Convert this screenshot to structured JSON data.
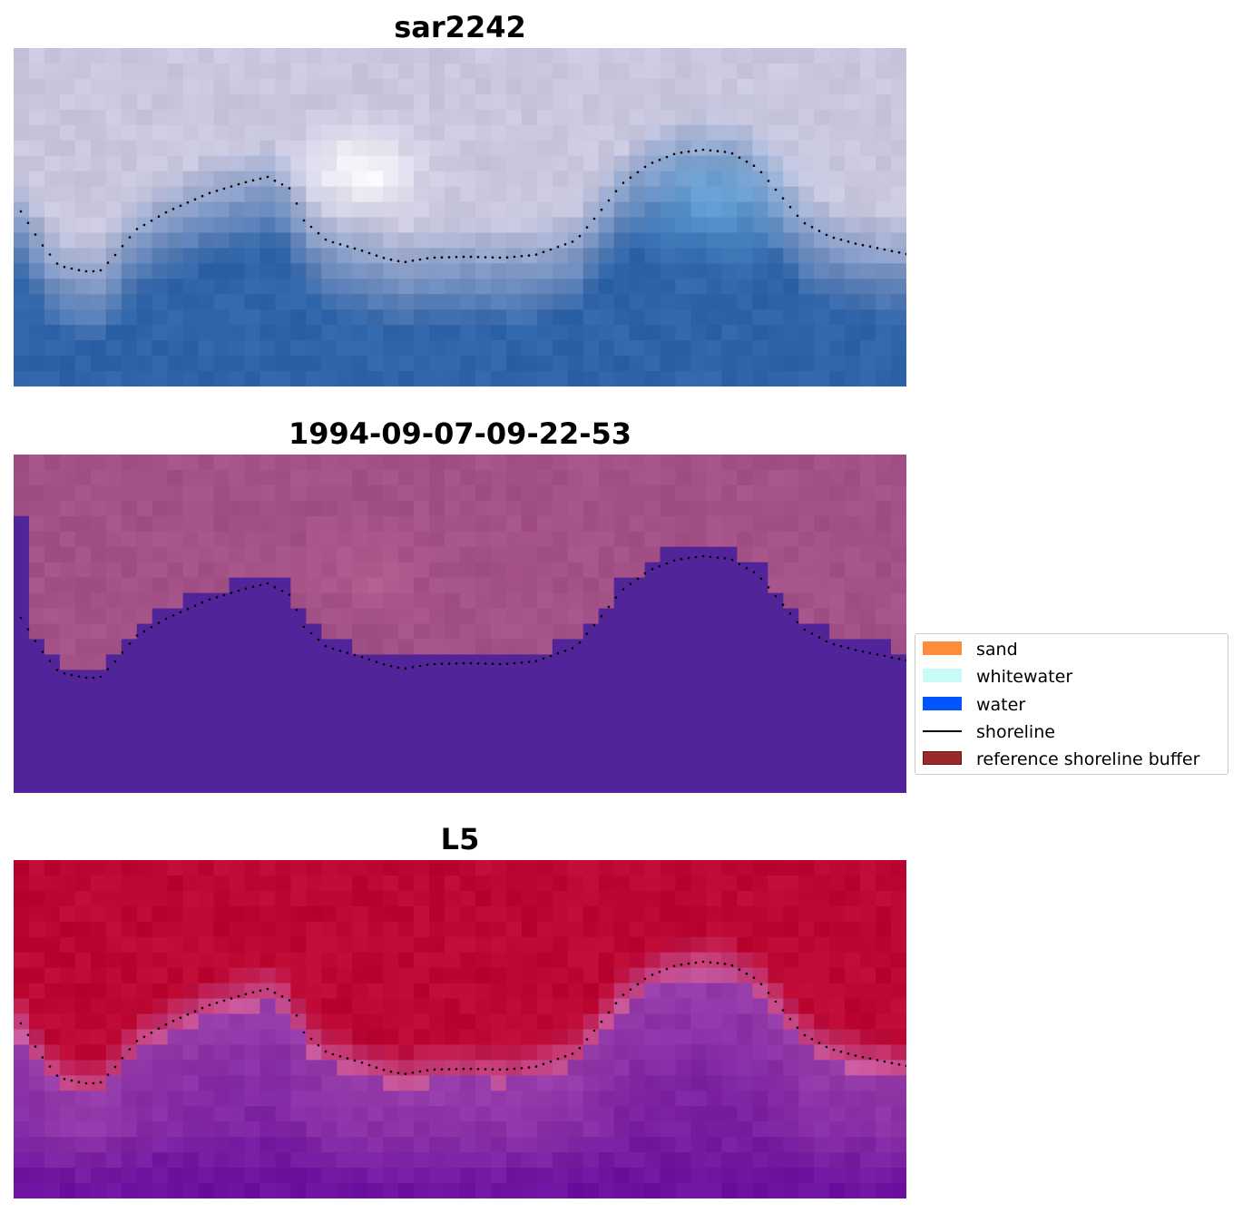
{
  "panels": [
    {
      "id": "rgb",
      "title": "sar2242"
    },
    {
      "id": "class",
      "title": "1994-09-07-09-22-53"
    },
    {
      "id": "index",
      "title": "L5"
    }
  ],
  "legend": {
    "items": [
      {
        "label": "sand",
        "kind": "patch",
        "color": "#ff8c3a"
      },
      {
        "label": "whitewater",
        "kind": "patch",
        "color": "#c8fbf8"
      },
      {
        "label": "water",
        "kind": "patch",
        "color": "#0055ff"
      },
      {
        "label": "shoreline",
        "kind": "line",
        "color": "#000000"
      },
      {
        "label": "reference shoreline buffer",
        "kind": "patch",
        "color": "#9a2a2a",
        "edge": "#6a1414"
      }
    ]
  },
  "colors": {
    "panel1_land": "#c9c7de",
    "panel1_water": "#2f64a8",
    "panel1_bright": "#ffffff",
    "panel2_land": "#a45187",
    "panel2_water": "#52249a",
    "panel3_land": "#bc0733",
    "panel3_water": "#7a1fa0",
    "shoreline": "#000000"
  }
}
